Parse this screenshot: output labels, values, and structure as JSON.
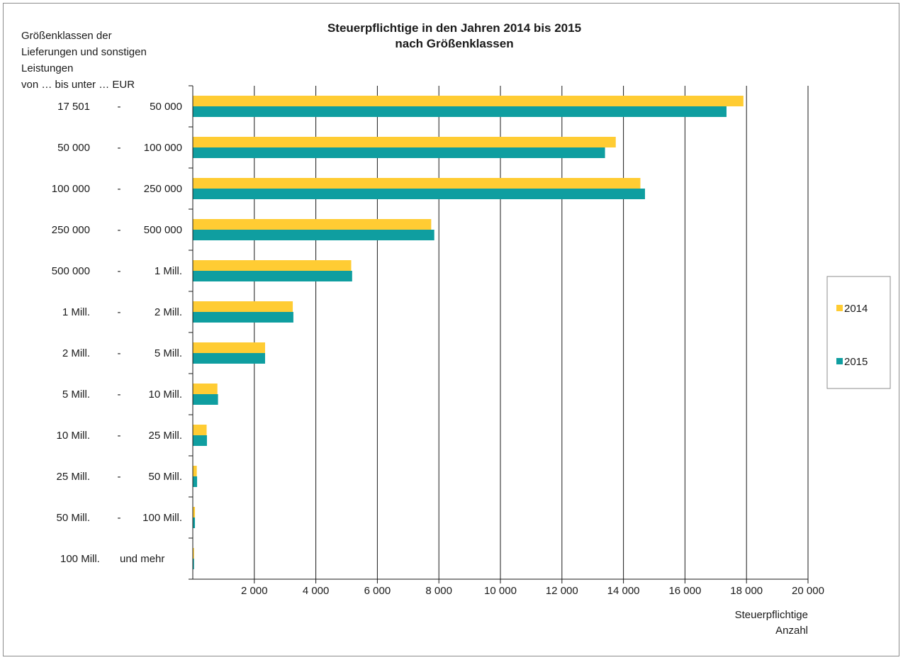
{
  "chart_data": {
    "type": "bar",
    "orientation": "horizontal",
    "title": [
      "Steuerpflichtige in den Jahren 2014 bis 2015",
      "nach Größenklassen"
    ],
    "ylabel": [
      "Größenklassen der",
      "Lieferungen und sonstigen",
      "Leistungen",
      "von … bis unter … EUR"
    ],
    "xlabel": [
      "Steuerpflichtige",
      "Anzahl"
    ],
    "xlim": [
      0,
      20000
    ],
    "xticks": [
      2000,
      4000,
      6000,
      8000,
      10000,
      12000,
      14000,
      16000,
      18000,
      20000
    ],
    "xtick_labels": [
      "2 000",
      "4 000",
      "6 000",
      "8 000",
      "10 000",
      "12 000",
      "14 000",
      "16 000",
      "18 000",
      "20 000"
    ],
    "grid": "vertical",
    "legend_position": "right",
    "categories": [
      {
        "from": "17 501",
        "sep": "-",
        "to": "50 000"
      },
      {
        "from": "50 000",
        "sep": "-",
        "to": "100 000"
      },
      {
        "from": "100 000",
        "sep": "-",
        "to": "250 000"
      },
      {
        "from": "250 000",
        "sep": "-",
        "to": "500 000"
      },
      {
        "from": "500 000",
        "sep": "-",
        "to": "1 Mill."
      },
      {
        "from": "1 Mill.",
        "sep": "-",
        "to": "2 Mill."
      },
      {
        "from": "2 Mill.",
        "sep": "-",
        "to": "5 Mill."
      },
      {
        "from": "5 Mill.",
        "sep": "-",
        "to": "10 Mill."
      },
      {
        "from": "10 Mill.",
        "sep": "-",
        "to": "25 Mill."
      },
      {
        "from": "25 Mill.",
        "sep": "-",
        "to": "50 Mill."
      },
      {
        "from": "50 Mill.",
        "sep": "-",
        "to": "100 Mill."
      },
      {
        "from": "100 Mill.",
        "sep": "",
        "to": "und mehr"
      }
    ],
    "series": [
      {
        "name": "2014",
        "color": "#ffcc33",
        "values": [
          17900,
          13750,
          14550,
          7750,
          5150,
          3250,
          2350,
          800,
          450,
          130,
          70,
          40
        ]
      },
      {
        "name": "2015",
        "color": "#0f9ea0",
        "values": [
          17350,
          13400,
          14700,
          7850,
          5180,
          3270,
          2350,
          820,
          460,
          140,
          70,
          40
        ]
      }
    ]
  }
}
